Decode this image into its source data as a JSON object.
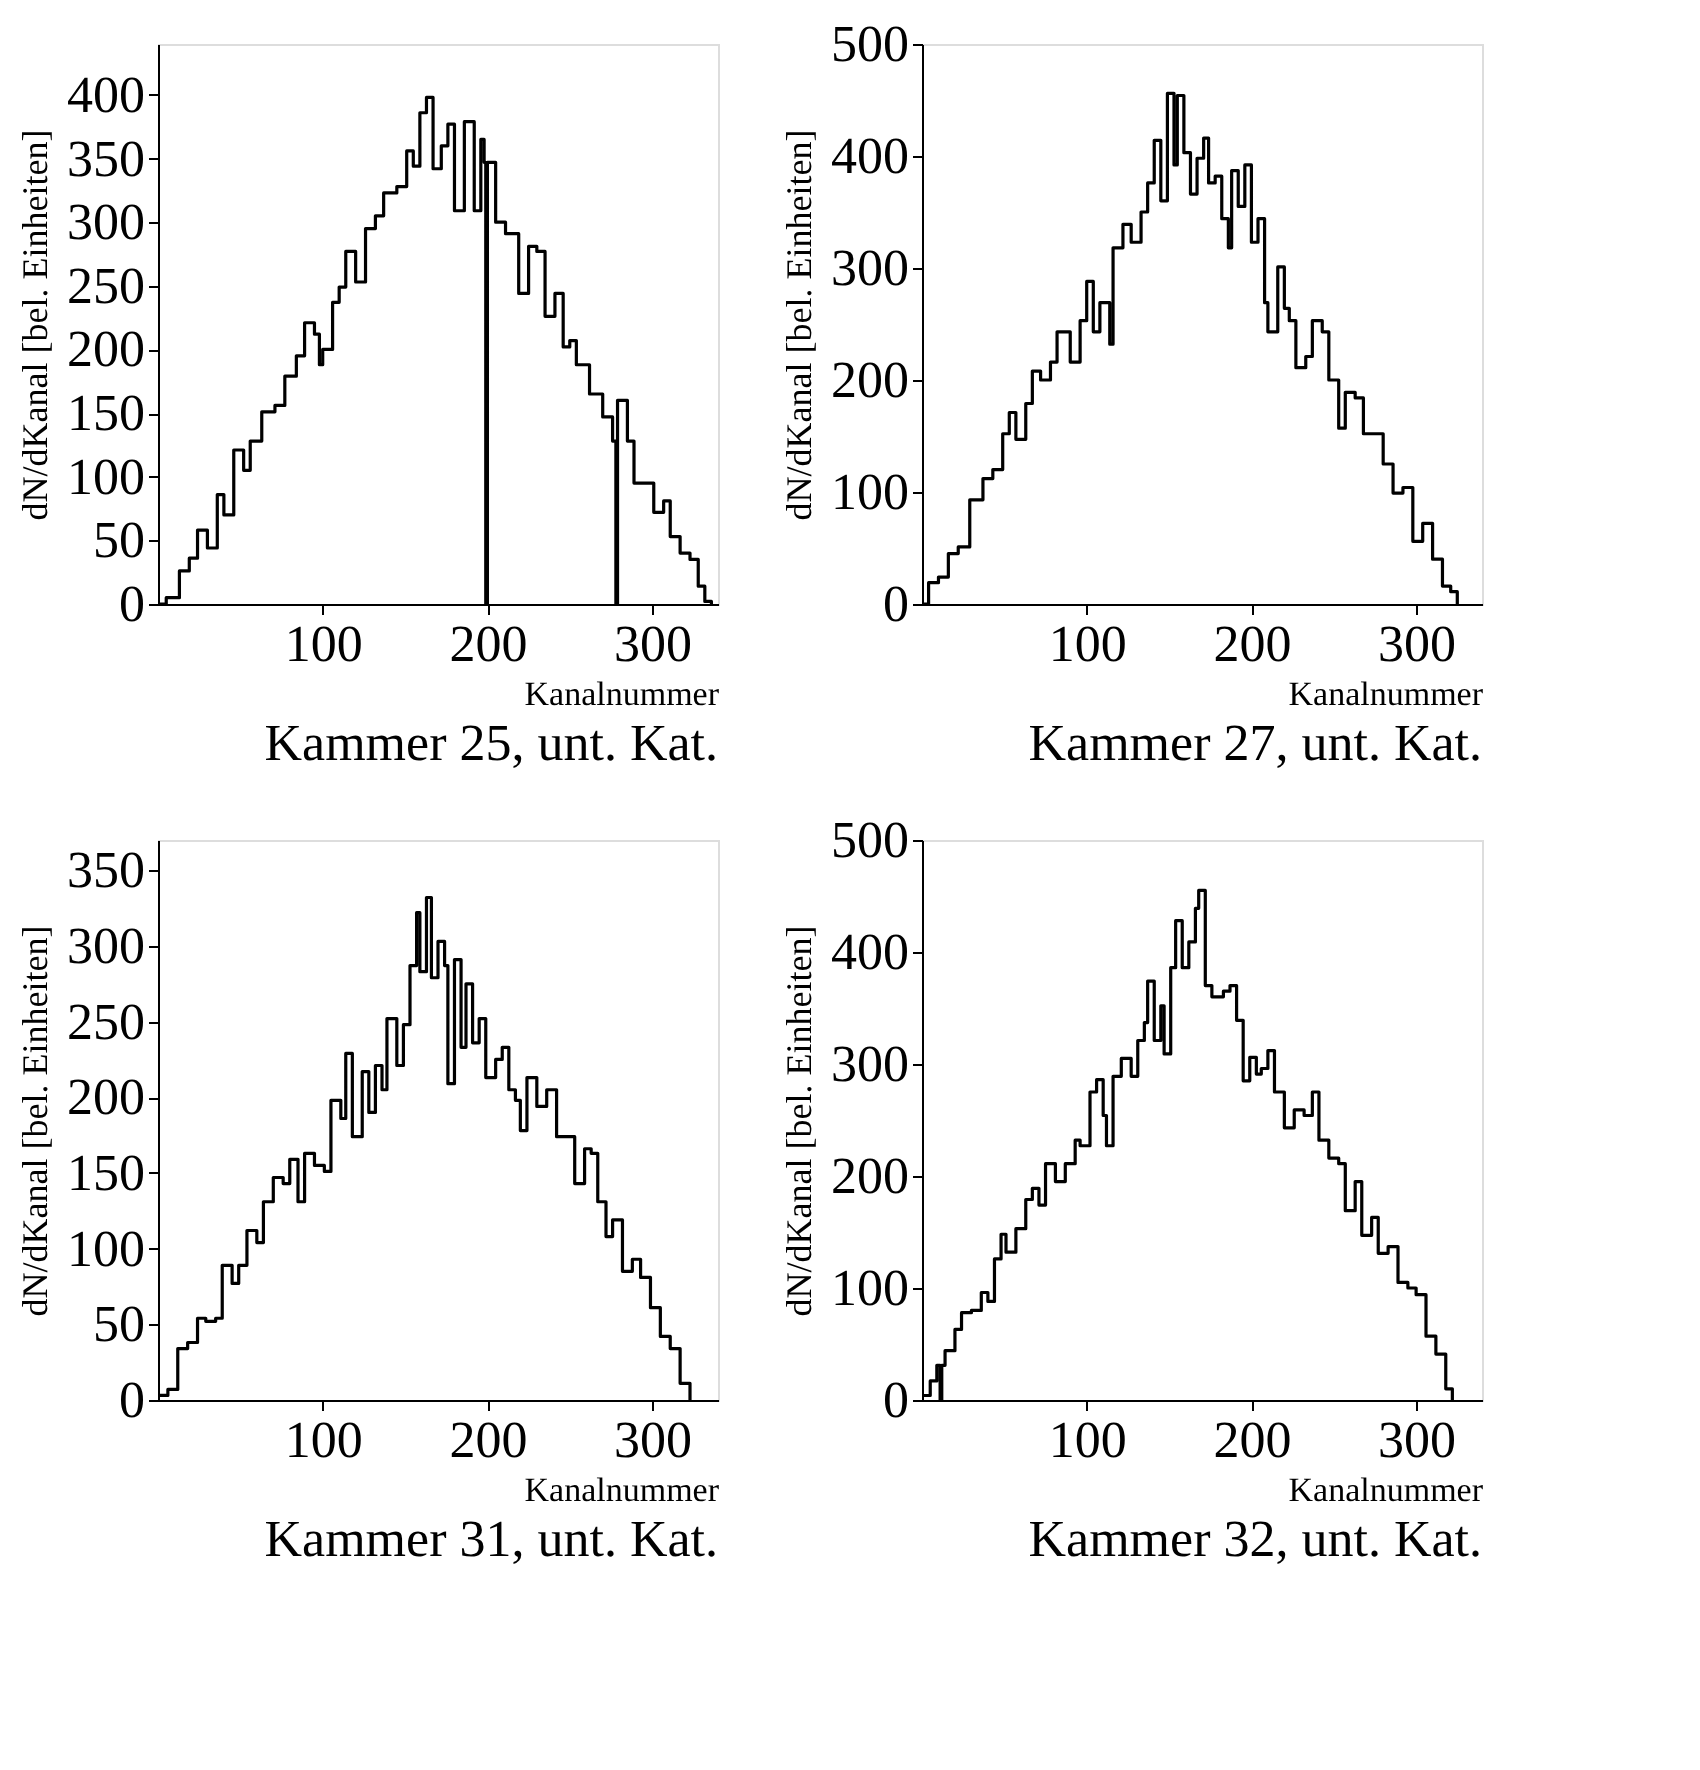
{
  "chart_data": [
    {
      "type": "step",
      "title": "Kammer 25, unt. Kat.",
      "xlabel": "Kanalnummer",
      "ylabel": "dN/dKanal  [bel. Einheiten]",
      "xlim": [
        0,
        340
      ],
      "xticks": [
        100,
        200,
        300
      ],
      "ylim": [
        0,
        440
      ],
      "yticks": [
        0,
        50,
        100,
        150,
        200,
        250,
        300,
        350,
        400
      ],
      "grid": false,
      "series": [
        {
          "color": "#000000",
          "x": [
            0,
            5,
            13,
            19,
            24,
            30,
            36,
            40,
            46,
            52,
            56,
            63,
            71,
            77,
            84,
            89,
            95,
            98,
            100,
            106,
            110,
            114,
            120,
            126,
            132,
            137,
            145,
            151,
            155,
            159,
            163,
            167,
            172,
            176,
            180,
            186,
            192,
            196,
            198,
            199,
            200,
            201,
            205,
            211,
            219,
            225,
            230,
            235,
            241,
            246,
            250,
            254,
            262,
            270,
            276,
            278,
            279,
            280,
            285,
            289,
            295,
            301,
            307,
            311,
            317,
            323,
            328,
            332,
            336
          ],
          "values": [
            0,
            5,
            26,
            36,
            58,
            44,
            86,
            70,
            121,
            105,
            128,
            151,
            156,
            179,
            195,
            221,
            212,
            188,
            200,
            237,
            249,
            277,
            253,
            295,
            305,
            323,
            328,
            356,
            344,
            386,
            398,
            342,
            360,
            377,
            309,
            379,
            309,
            365,
            347,
            0,
            347,
            347,
            300,
            291,
            244,
            281,
            277,
            226,
            244,
            202,
            207,
            188,
            165,
            147,
            128,
            0,
            160,
            160,
            128,
            95,
            95,
            72,
            81,
            53,
            40,
            35,
            14,
            2,
            0
          ]
        }
      ]
    },
    {
      "type": "step",
      "title": "Kammer 27, unt. Kat.",
      "xlabel": "Kanalnummer",
      "ylabel": "dN/dKanal  [bel. Einheiten]",
      "xlim": [
        0,
        340
      ],
      "xticks": [
        100,
        200,
        300
      ],
      "ylim": [
        0,
        500
      ],
      "yticks": [
        0,
        100,
        200,
        300,
        400,
        500
      ],
      "grid": false,
      "series": [
        {
          "color": "#000000",
          "x": [
            0,
            4,
            10,
            16,
            22,
            29,
            37,
            43,
            49,
            53,
            57,
            63,
            67,
            72,
            78,
            82,
            90,
            96,
            100,
            104,
            108,
            114,
            116,
            122,
            127,
            133,
            137,
            141,
            145,
            149,
            153,
            155,
            159,
            163,
            167,
            171,
            174,
            178,
            182,
            186,
            188,
            192,
            196,
            200,
            204,
            208,
            210,
            216,
            220,
            223,
            227,
            233,
            237,
            243,
            247,
            253,
            257,
            263,
            268,
            274,
            280,
            286,
            292,
            298,
            304,
            310,
            316,
            321,
            325
          ],
          "values": [
            0,
            19,
            24,
            45,
            51,
            93,
            112,
            120,
            152,
            171,
            147,
            179,
            208,
            200,
            216,
            243,
            216,
            253,
            288,
            243,
            269,
            232,
            318,
            339,
            323,
            350,
            376,
            414,
            360,
            456,
            392,
            454,
            403,
            366,
            398,
            416,
            376,
            382,
            344,
            318,
            387,
            355,
            392,
            323,
            344,
            269,
            243,
            301,
            264,
            253,
            211,
            221,
            253,
            243,
            200,
            157,
            189,
            184,
            152,
            152,
            125,
            99,
            104,
            56,
            72,
            40,
            16,
            11,
            0
          ]
        }
      ]
    },
    {
      "type": "step",
      "title": "Kammer 31, unt. Kat.",
      "xlabel": "Kanalnummer",
      "ylabel": "dN/dKanal  [bel. Einheiten]",
      "xlim": [
        0,
        340
      ],
      "xticks": [
        100,
        200,
        300
      ],
      "ylim": [
        0,
        370
      ],
      "yticks": [
        0,
        50,
        100,
        150,
        200,
        250,
        300,
        350
      ],
      "grid": false,
      "series": [
        {
          "color": "#000000",
          "x": [
            1,
            6,
            12,
            18,
            24,
            29,
            35,
            39,
            45,
            49,
            54,
            60,
            64,
            70,
            76,
            80,
            85,
            89,
            95,
            101,
            105,
            111,
            114,
            118,
            124,
            128,
            132,
            136,
            139,
            145,
            149,
            153,
            157,
            159,
            163,
            166,
            170,
            174,
            176,
            180,
            184,
            187,
            191,
            195,
            199,
            205,
            209,
            213,
            217,
            220,
            224,
            230,
            236,
            242,
            247,
            253,
            259,
            263,
            267,
            272,
            276,
            282,
            288,
            293,
            299,
            305,
            311,
            317,
            323
          ],
          "values": [
            3,
            7,
            34,
            38,
            54,
            52,
            54,
            89,
            77,
            89,
            112,
            104,
            131,
            147,
            143,
            159,
            131,
            163,
            155,
            151,
            198,
            186,
            229,
            174,
            217,
            190,
            221,
            205,
            252,
            221,
            248,
            287,
            322,
            283,
            332,
            279,
            303,
            287,
            209,
            291,
            233,
            275,
            236,
            252,
            213,
            225,
            233,
            205,
            198,
            178,
            213,
            194,
            205,
            174,
            174,
            143,
            166,
            163,
            131,
            108,
            119,
            85,
            93,
            81,
            61,
            42,
            34,
            11,
            0
          ]
        }
      ]
    },
    {
      "type": "step",
      "title": "Kammer 32, unt. Kat.",
      "xlabel": "Kanalnummer",
      "ylabel": "dN/dKanal  [bel. Einheiten]",
      "xlim": [
        0,
        340
      ],
      "xticks": [
        100,
        200,
        300
      ],
      "ylim": [
        0,
        500
      ],
      "yticks": [
        0,
        100,
        200,
        300,
        400,
        500
      ],
      "grid": false,
      "series": [
        {
          "color": "#000000",
          "x": [
            0,
            5,
            9,
            11,
            12,
            14,
            20,
            24,
            30,
            36,
            40,
            44,
            48,
            51,
            57,
            63,
            67,
            71,
            75,
            81,
            87,
            93,
            96,
            102,
            106,
            110,
            112,
            116,
            121,
            127,
            131,
            135,
            137,
            141,
            145,
            147,
            151,
            154,
            158,
            162,
            166,
            168,
            172,
            176,
            180,
            183,
            187,
            191,
            195,
            199,
            203,
            206,
            210,
            214,
            220,
            226,
            232,
            237,
            241,
            247,
            253,
            257,
            263,
            267,
            273,
            277,
            283,
            289,
            295,
            300,
            306,
            312,
            318,
            322
          ],
          "values": [
            4,
            17,
            31,
            0,
            31,
            44,
            63,
            78,
            80,
            96,
            88,
            126,
            148,
            132,
            153,
            179,
            189,
            174,
            211,
            195,
            211,
            232,
            227,
            275,
            286,
            254,
            227,
            289,
            305,
            289,
            321,
            337,
            374,
            321,
            352,
            309,
            386,
            428,
            386,
            409,
            439,
            455,
            370,
            360,
            360,
            365,
            370,
            339,
            285,
            306,
            291,
            296,
            312,
            275,
            243,
            259,
            254,
            275,
            232,
            216,
            211,
            169,
            195,
            147,
            163,
            131,
            137,
            105,
            100,
            94,
            57,
            41,
            10,
            0
          ]
        }
      ]
    }
  ]
}
